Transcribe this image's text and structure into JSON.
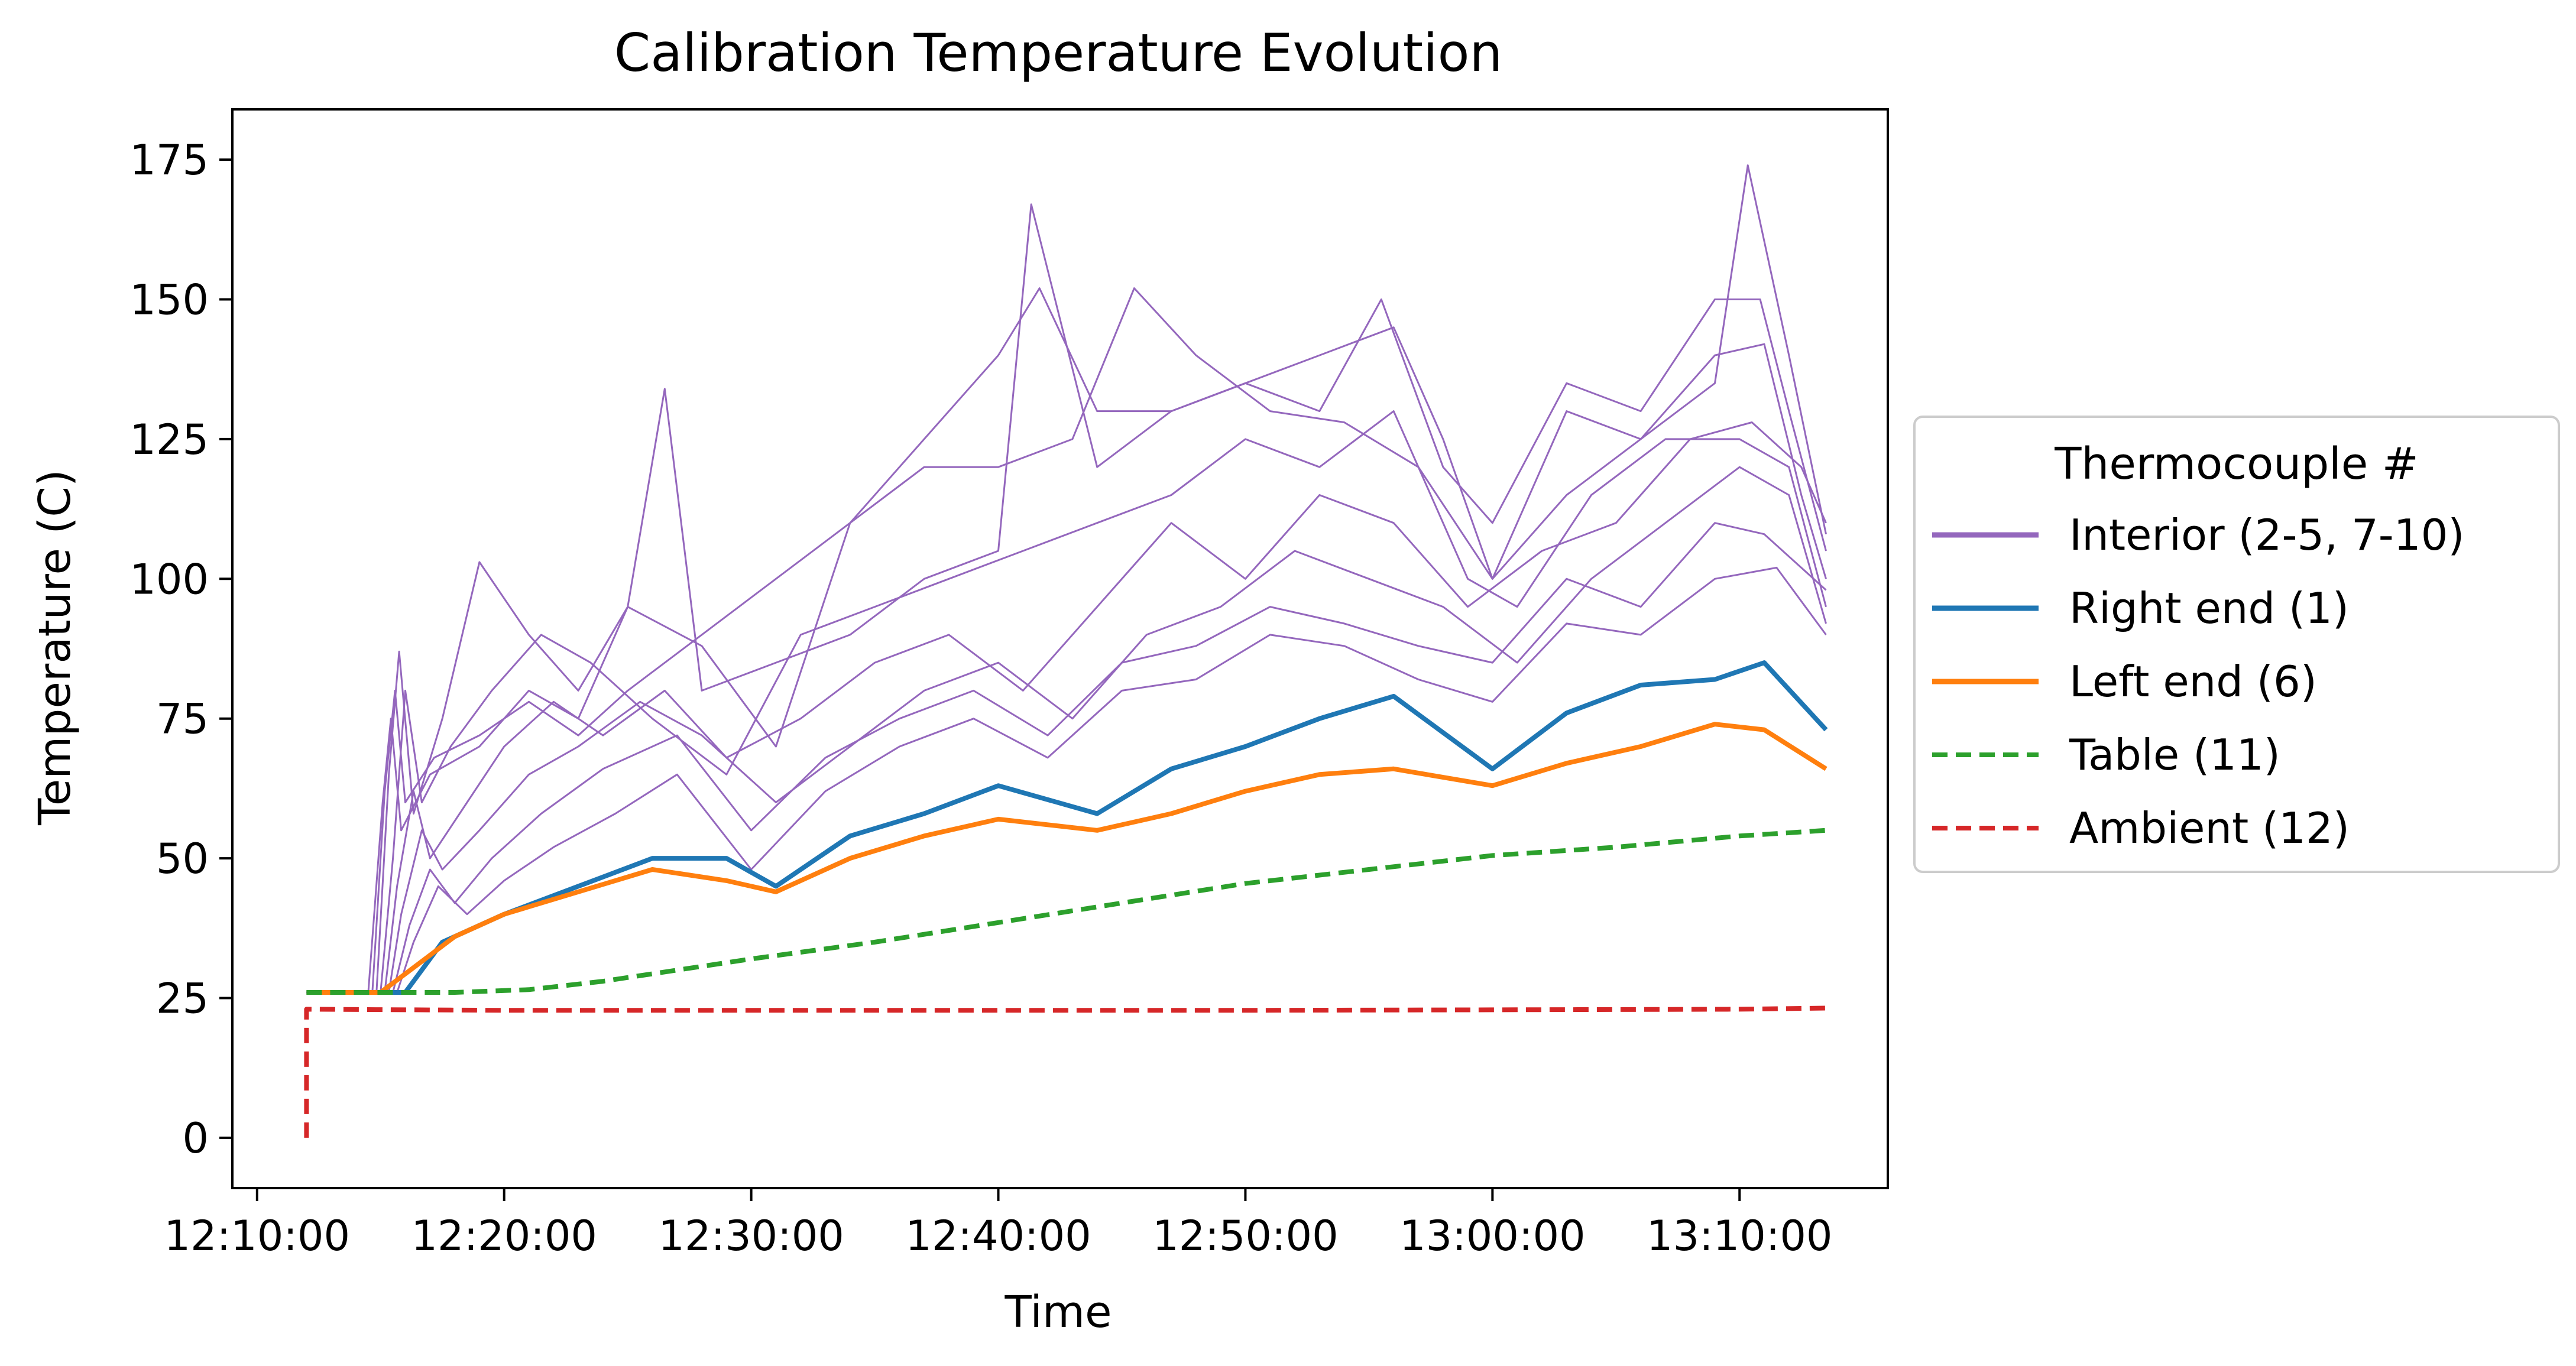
{
  "chart_data": {
    "type": "line",
    "title": "Calibration Temperature Evolution",
    "xlabel": "Time",
    "ylabel": "Temperature (C)",
    "x_unit": "time of day (HH:MM:SS)",
    "xlim": [
      "12:09:00",
      "13:16:00"
    ],
    "ylim": [
      -9,
      184
    ],
    "x_ticks": [
      "12:10:00",
      "12:20:00",
      "12:30:00",
      "12:40:00",
      "12:50:00",
      "13:00:00",
      "13:10:00"
    ],
    "y_ticks": [
      0,
      25,
      50,
      75,
      100,
      125,
      150,
      175
    ],
    "grid": false,
    "legend": {
      "title": "Thermocouple #",
      "placement": "outside right, centered",
      "entries": [
        {
          "label": "Interior (2-5, 7-10)",
          "color": "#9467bd",
          "style": "solid"
        },
        {
          "label": "Right end (1)",
          "color": "#1f77b4",
          "style": "solid"
        },
        {
          "label": "Left end (6)",
          "color": "#ff7f0e",
          "style": "solid"
        },
        {
          "label": "Table (11)",
          "color": "#2ca02c",
          "style": "dashed"
        },
        {
          "label": "Ambient (12)",
          "color": "#d62728",
          "style": "dashed"
        }
      ]
    },
    "series": [
      {
        "name": "Interior (2-5, 7-10)",
        "color": "#9467bd",
        "note": "8 thin lines, one per interior thermocouple",
        "lines": [
          {
            "x": [
              "12:12:00",
              "12:14:30",
              "12:15:05",
              "12:15:25",
              "12:15:50",
              "12:17:00",
              "12:19:00",
              "12:21:00",
              "12:23:00",
              "12:25:00",
              "12:26:30",
              "12:28:00",
              "12:31:00",
              "12:34:00",
              "12:37:00",
              "12:40:00",
              "12:41:20",
              "12:44:00",
              "12:47:00",
              "12:50:00",
              "12:53:00",
              "12:56:00",
              "12:58:00",
              "13:00:00",
              "13:03:00",
              "13:06:00",
              "13:09:00",
              "13:10:20",
              "13:12:00",
              "13:13:30"
            ],
            "y": [
              26,
              26,
              60,
              75,
              55,
              65,
              70,
              80,
              75,
              95,
              134,
              80,
              85,
              90,
              100,
              105,
              167,
              120,
              130,
              135,
              140,
              145,
              125,
              100,
              115,
              125,
              135,
              174,
              140,
              108
            ]
          },
          {
            "x": [
              "12:12:00",
              "12:14:40",
              "12:15:10",
              "12:15:35",
              "12:16:00",
              "12:17:10",
              "12:19:00",
              "12:21:00",
              "12:23:00",
              "12:25:00",
              "12:28:00",
              "12:31:00",
              "12:34:00",
              "12:37:00",
              "12:40:00",
              "12:41:40",
              "12:44:00",
              "12:47:00",
              "12:50:00",
              "12:53:00",
              "12:55:30",
              "12:58:00",
              "13:00:00",
              "13:03:00",
              "13:06:00",
              "13:09:00",
              "13:10:50",
              "13:12:00",
              "13:13:30"
            ],
            "y": [
              26,
              26,
              62,
              80,
              60,
              68,
              72,
              78,
              72,
              80,
              90,
              100,
              110,
              125,
              140,
              152,
              130,
              130,
              135,
              130,
              150,
              120,
              110,
              135,
              130,
              150,
              150,
              130,
              105
            ]
          },
          {
            "x": [
              "12:12:00",
              "12:14:50",
              "12:15:20",
              "12:15:45",
              "12:16:20",
              "12:17:30",
              "12:19:00",
              "12:21:00",
              "12:23:00",
              "12:25:00",
              "12:28:00",
              "12:31:00",
              "12:34:00",
              "12:37:00",
              "12:40:00",
              "12:43:00",
              "12:45:30",
              "12:48:00",
              "12:51:00",
              "12:54:00",
              "12:57:00",
              "13:00:00",
              "13:03:00",
              "13:06:00",
              "13:09:00",
              "13:11:00",
              "13:12:30",
              "13:13:30"
            ],
            "y": [
              26,
              26,
              65,
              87,
              58,
              75,
              103,
              90,
              80,
              95,
              88,
              70,
              110,
              120,
              120,
              125,
              152,
              140,
              130,
              128,
              120,
              100,
              130,
              125,
              140,
              142,
              115,
              100
            ]
          },
          {
            "x": [
              "12:12:00",
              "12:15:00",
              "12:15:30",
              "12:16:00",
              "12:16:40",
              "12:17:50",
              "12:19:30",
              "12:21:30",
              "12:23:30",
              "12:26:00",
              "12:29:00",
              "12:32:00",
              "12:35:00",
              "12:38:00",
              "12:41:00",
              "12:44:00",
              "12:47:00",
              "12:50:00",
              "12:53:00",
              "12:56:00",
              "12:59:00",
              "13:01:00",
              "13:04:00",
              "13:07:00",
              "13:10:00",
              "13:12:00",
              "13:13:30"
            ],
            "y": [
              26,
              26,
              50,
              80,
              60,
              70,
              80,
              90,
              85,
              75,
              65,
              90,
              95,
              100,
              105,
              110,
              115,
              125,
              120,
              130,
              100,
              95,
              115,
              125,
              125,
              120,
              95
            ]
          },
          {
            "x": [
              "12:12:00",
              "12:15:10",
              "12:15:40",
              "12:16:20",
              "12:17:00",
              "12:18:30",
              "12:20:00",
              "12:22:00",
              "12:24:00",
              "12:26:30",
              "12:29:00",
              "12:32:00",
              "12:35:00",
              "12:38:00",
              "12:41:00",
              "12:44:00",
              "12:47:00",
              "12:50:00",
              "12:53:00",
              "12:56:00",
              "12:59:00",
              "13:02:00",
              "13:05:00",
              "13:08:00",
              "13:10:30",
              "13:12:30",
              "13:13:30"
            ],
            "y": [
              26,
              26,
              45,
              62,
              50,
              60,
              70,
              78,
              72,
              80,
              68,
              75,
              85,
              90,
              80,
              95,
              110,
              100,
              115,
              110,
              95,
              105,
              110,
              125,
              128,
              120,
              110
            ]
          },
          {
            "x": [
              "12:12:00",
              "12:15:20",
              "12:15:50",
              "12:16:40",
              "12:17:30",
              "12:19:00",
              "12:21:00",
              "12:23:00",
              "12:25:30",
              "12:28:00",
              "12:31:00",
              "12:34:00",
              "12:37:00",
              "12:40:00",
              "12:43:00",
              "12:46:00",
              "12:49:00",
              "12:52:00",
              "12:55:00",
              "12:58:00",
              "13:01:00",
              "13:04:00",
              "13:07:00",
              "13:10:00",
              "13:12:00",
              "13:13:30"
            ],
            "y": [
              26,
              26,
              40,
              55,
              48,
              55,
              65,
              70,
              78,
              72,
              60,
              70,
              80,
              85,
              75,
              90,
              95,
              105,
              100,
              95,
              85,
              100,
              110,
              120,
              115,
              92
            ]
          },
          {
            "x": [
              "12:12:00",
              "12:15:30",
              "12:16:10",
              "12:17:00",
              "12:18:00",
              "12:19:30",
              "12:21:30",
              "12:24:00",
              "12:27:00",
              "12:30:00",
              "12:33:00",
              "12:36:00",
              "12:39:00",
              "12:42:00",
              "12:45:00",
              "12:48:00",
              "12:51:00",
              "12:54:00",
              "12:57:00",
              "13:00:00",
              "13:03:00",
              "13:06:00",
              "13:09:00",
              "13:11:00",
              "13:13:30"
            ],
            "y": [
              26,
              26,
              38,
              48,
              42,
              50,
              58,
              66,
              72,
              55,
              68,
              75,
              80,
              72,
              85,
              88,
              95,
              92,
              88,
              85,
              100,
              95,
              110,
              108,
              98
            ]
          },
          {
            "x": [
              "12:12:00",
              "12:15:40",
              "12:16:20",
              "12:17:20",
              "12:18:30",
              "12:20:00",
              "12:22:00",
              "12:24:30",
              "12:27:00",
              "12:30:00",
              "12:33:00",
              "12:36:00",
              "12:39:00",
              "12:42:00",
              "12:45:00",
              "12:48:00",
              "12:51:00",
              "12:54:00",
              "12:57:00",
              "13:00:00",
              "13:03:00",
              "13:06:00",
              "13:09:00",
              "13:11:30",
              "13:13:30"
            ],
            "y": [
              26,
              26,
              35,
              45,
              40,
              46,
              52,
              58,
              65,
              48,
              62,
              70,
              75,
              68,
              80,
              82,
              90,
              88,
              82,
              78,
              92,
              90,
              100,
              102,
              90
            ]
          }
        ]
      },
      {
        "name": "Right end (1)",
        "color": "#1f77b4",
        "x": [
          "12:12:00",
          "12:16:00",
          "12:17:30",
          "12:20:00",
          "12:23:00",
          "12:26:00",
          "12:29:00",
          "12:31:00",
          "12:34:00",
          "12:37:00",
          "12:40:00",
          "12:44:00",
          "12:47:00",
          "12:50:00",
          "12:53:00",
          "12:56:00",
          "13:00:00",
          "13:03:00",
          "13:06:00",
          "13:09:00",
          "13:11:00",
          "13:13:30"
        ],
        "y": [
          26,
          26,
          35,
          40,
          45,
          50,
          50,
          45,
          54,
          58,
          63,
          58,
          66,
          70,
          75,
          79,
          66,
          76,
          81,
          82,
          85,
          73
        ]
      },
      {
        "name": "Left end (6)",
        "color": "#ff7f0e",
        "x": [
          "12:12:00",
          "12:15:00",
          "12:16:30",
          "12:18:00",
          "12:20:00",
          "12:23:00",
          "12:26:00",
          "12:29:00",
          "12:31:00",
          "12:34:00",
          "12:37:00",
          "12:40:00",
          "12:44:00",
          "12:47:00",
          "12:50:00",
          "12:53:00",
          "12:56:00",
          "13:00:00",
          "13:03:00",
          "13:06:00",
          "13:09:00",
          "13:11:00",
          "13:13:30"
        ],
        "y": [
          26,
          26,
          31,
          36,
          40,
          44,
          48,
          46,
          44,
          50,
          54,
          57,
          55,
          58,
          62,
          65,
          66,
          63,
          67,
          70,
          74,
          73,
          66
        ]
      },
      {
        "name": "Table (11)",
        "color": "#2ca02c",
        "dashed": true,
        "x": [
          "12:12:00",
          "12:15:00",
          "12:18:00",
          "12:21:00",
          "12:24:00",
          "12:27:00",
          "12:30:00",
          "12:35:00",
          "12:40:00",
          "12:45:00",
          "12:50:00",
          "12:55:00",
          "13:00:00",
          "13:05:00",
          "13:10:00",
          "13:13:30"
        ],
        "y": [
          26,
          26,
          26,
          26.5,
          28,
          30,
          32,
          35,
          38.5,
          42,
          45.5,
          48,
          50.5,
          52,
          54,
          55
        ]
      },
      {
        "name": "Ambient (12)",
        "color": "#d62728",
        "dashed": true,
        "x": [
          "12:12:00",
          "12:12:00",
          "12:20:00",
          "12:30:00",
          "12:40:00",
          "12:50:00",
          "13:00:00",
          "13:10:00",
          "13:13:30"
        ],
        "y": [
          0,
          23,
          22.8,
          22.8,
          22.8,
          22.8,
          22.9,
          23,
          23.2
        ]
      }
    ]
  }
}
